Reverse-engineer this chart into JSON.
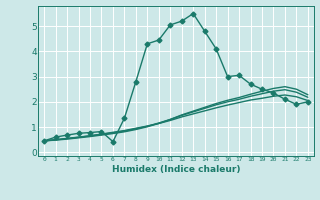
{
  "xlabel": "Humidex (Indice chaleur)",
  "ylabel": "",
  "background_color": "#cde8e8",
  "grid_color": "#ffffff",
  "line_color": "#1a7a6a",
  "xlim": [
    -0.5,
    23.5
  ],
  "ylim": [
    -0.15,
    5.8
  ],
  "xticks": [
    0,
    1,
    2,
    3,
    4,
    5,
    6,
    7,
    8,
    9,
    10,
    11,
    12,
    13,
    14,
    15,
    16,
    17,
    18,
    19,
    20,
    21,
    22,
    23
  ],
  "yticks": [
    0,
    1,
    2,
    3,
    4,
    5
  ],
  "series": [
    {
      "x": [
        0,
        1,
        2,
        3,
        4,
        5,
        6,
        7,
        8,
        9,
        10,
        11,
        12,
        13,
        14,
        15,
        16,
        17,
        18,
        19,
        20,
        21,
        22,
        23
      ],
      "y": [
        0.45,
        0.6,
        0.68,
        0.75,
        0.78,
        0.82,
        0.42,
        1.35,
        2.8,
        4.3,
        4.45,
        5.05,
        5.2,
        5.5,
        4.8,
        4.1,
        3.0,
        3.05,
        2.7,
        2.5,
        2.35,
        2.1,
        1.9,
        2.0
      ],
      "marker": "D",
      "markersize": 2.5,
      "linewidth": 1.0
    },
    {
      "x": [
        0,
        1,
        2,
        3,
        4,
        5,
        6,
        7,
        8,
        9,
        10,
        11,
        12,
        13,
        14,
        15,
        16,
        17,
        18,
        19,
        20,
        21,
        22,
        23
      ],
      "y": [
        0.45,
        0.5,
        0.55,
        0.6,
        0.65,
        0.72,
        0.79,
        0.86,
        0.95,
        1.04,
        1.14,
        1.26,
        1.4,
        1.52,
        1.64,
        1.76,
        1.87,
        1.97,
        2.07,
        2.14,
        2.22,
        2.27,
        2.2,
        2.05
      ],
      "marker": null,
      "markersize": 0,
      "linewidth": 1.0
    },
    {
      "x": [
        0,
        1,
        2,
        3,
        4,
        5,
        6,
        7,
        8,
        9,
        10,
        11,
        12,
        13,
        14,
        15,
        16,
        17,
        18,
        19,
        20,
        21,
        22,
        23
      ],
      "y": [
        0.45,
        0.49,
        0.54,
        0.59,
        0.65,
        0.71,
        0.77,
        0.84,
        0.93,
        1.03,
        1.16,
        1.3,
        1.46,
        1.6,
        1.74,
        1.88,
        2.0,
        2.1,
        2.22,
        2.32,
        2.42,
        2.48,
        2.38,
        2.18
      ],
      "marker": null,
      "markersize": 0,
      "linewidth": 1.0
    },
    {
      "x": [
        0,
        1,
        2,
        3,
        4,
        5,
        6,
        7,
        8,
        9,
        10,
        11,
        12,
        13,
        14,
        15,
        16,
        17,
        18,
        19,
        20,
        21,
        22,
        23
      ],
      "y": [
        0.45,
        0.48,
        0.52,
        0.57,
        0.62,
        0.68,
        0.74,
        0.81,
        0.9,
        1.01,
        1.14,
        1.3,
        1.48,
        1.63,
        1.78,
        1.93,
        2.06,
        2.17,
        2.3,
        2.42,
        2.53,
        2.6,
        2.5,
        2.28
      ],
      "marker": null,
      "markersize": 0,
      "linewidth": 1.0
    }
  ]
}
